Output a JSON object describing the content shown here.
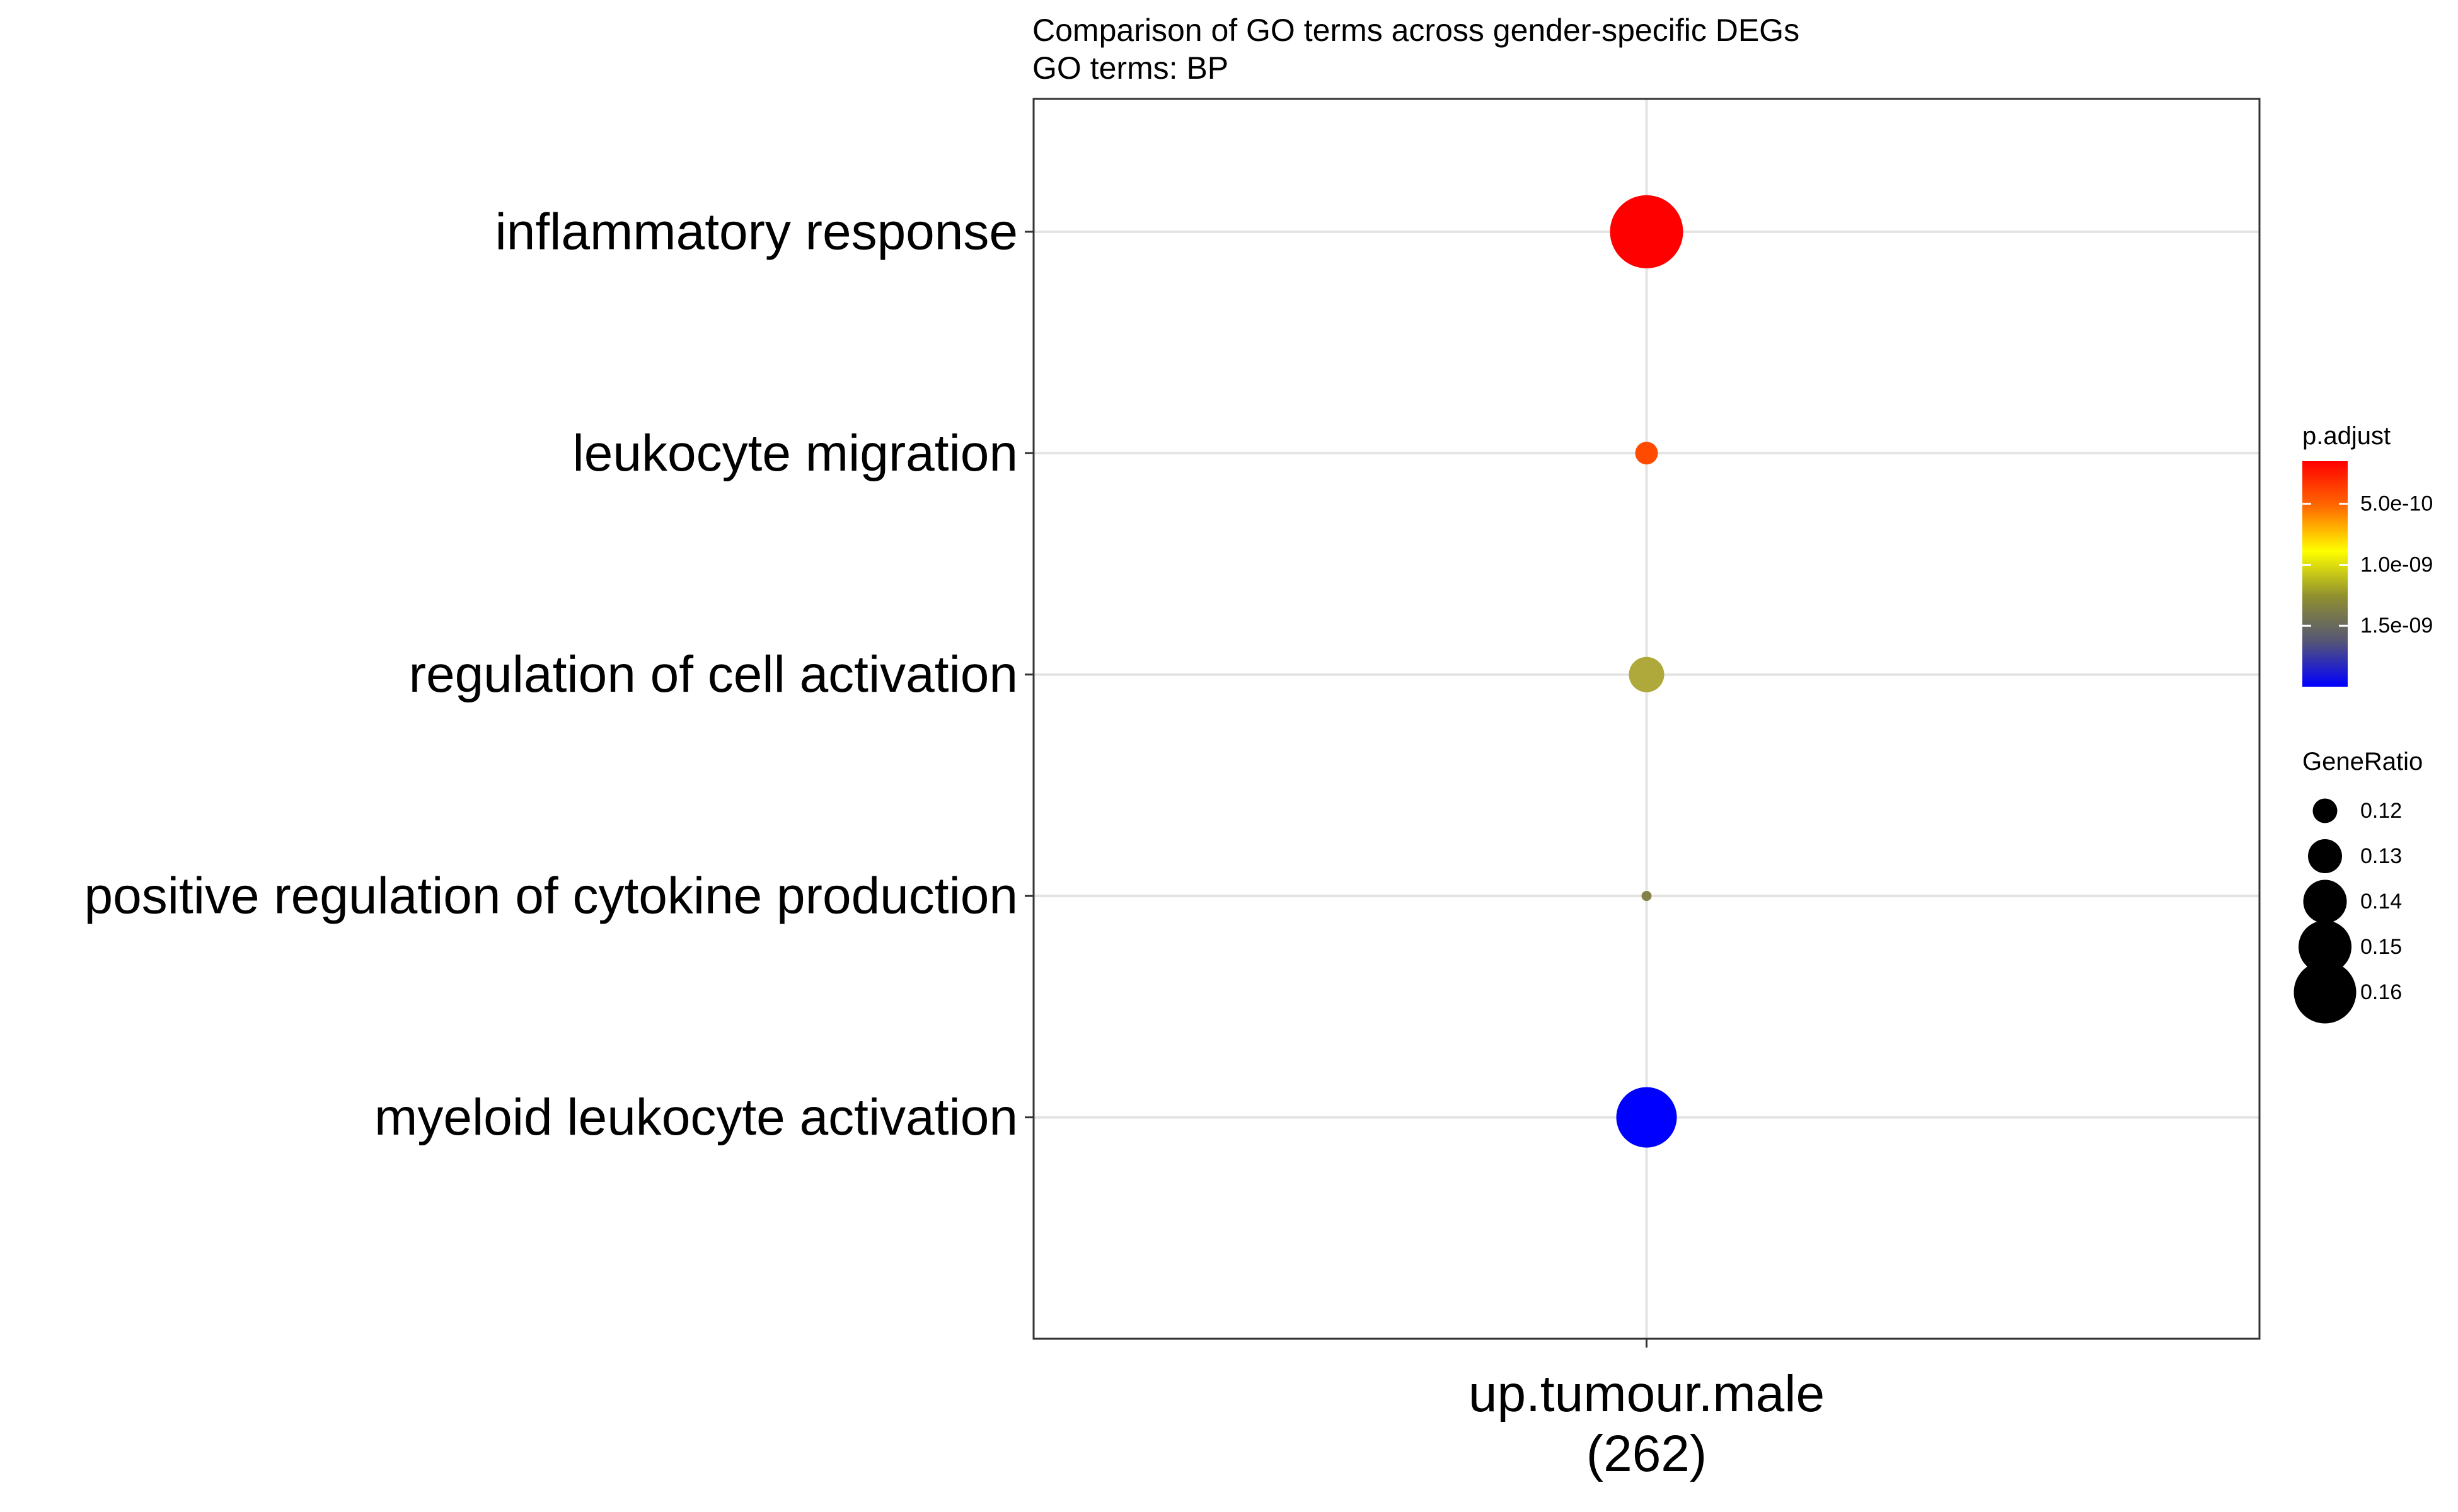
{
  "chart_data": {
    "type": "scatter",
    "title": "Comparison of GO terms across gender-specific DEGs",
    "subtitle": "GO terms: BP",
    "x_categories": [
      {
        "label": "up.tumour.male",
        "count": "(262)"
      }
    ],
    "y_categories": [
      "inflammatory response",
      "leukocyte migration",
      "regulation of cell activation",
      "positive regulation of cytokine production",
      "myeloid leukocyte activation"
    ],
    "points": [
      {
        "x": "up.tumour.male",
        "y": "inflammatory response",
        "gene_ratio": 0.16,
        "p_adjust": 1.5e-10,
        "color": "#ff0000"
      },
      {
        "x": "up.tumour.male",
        "y": "leukocyte migration",
        "gene_ratio": 0.12,
        "p_adjust": 3e-10,
        "color": "#ff4a00"
      },
      {
        "x": "up.tumour.male",
        "y": "regulation of cell activation",
        "gene_ratio": 0.13,
        "p_adjust": 1.1e-09,
        "color": "#afa83a"
      },
      {
        "x": "up.tumour.male",
        "y": "positive regulation of cytokine production",
        "gene_ratio": 0.11,
        "p_adjust": 1.2e-09,
        "color": "#858245"
      },
      {
        "x": "up.tumour.male",
        "y": "myeloid leukocyte activation",
        "gene_ratio": 0.15,
        "p_adjust": 1.9e-09,
        "color": "#0000ff"
      }
    ],
    "color_legend": {
      "title": "p.adjust",
      "gradient": [
        "#ff0000",
        "#ff6a00",
        "#ffff00",
        "#8f8f30",
        "#555577",
        "#0000ff"
      ],
      "breaks": [
        {
          "label": "5.0e-10",
          "value": 5e-10
        },
        {
          "label": "1.0e-09",
          "value": 1e-09
        },
        {
          "label": "1.5e-09",
          "value": 1.5e-09
        }
      ],
      "range": [
        1.5e-10,
        2e-09
      ]
    },
    "size_legend": {
      "title": "GeneRatio",
      "breaks": [
        0.12,
        0.13,
        0.14,
        0.15,
        0.16
      ],
      "labels": [
        "0.12",
        "0.13",
        "0.14",
        "0.15",
        "0.16"
      ]
    },
    "grid": true
  }
}
